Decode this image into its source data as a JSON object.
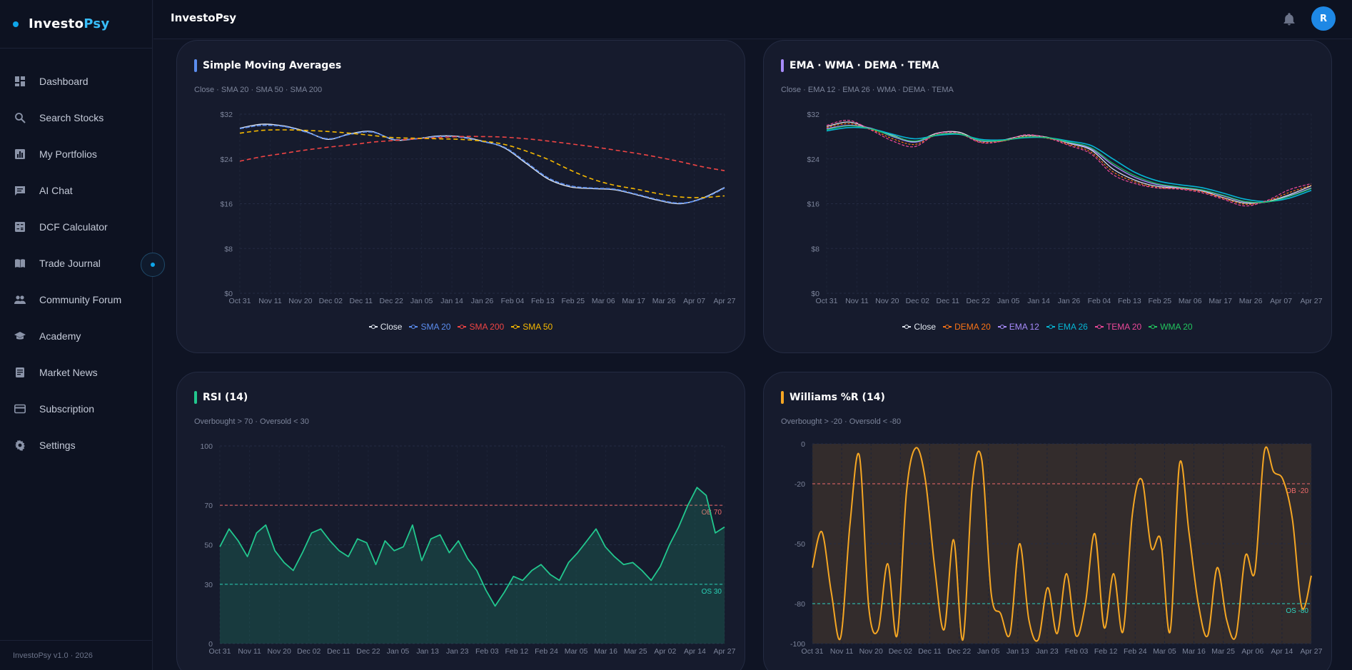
{
  "brand": {
    "part1": "Investo",
    "part2": "Psy"
  },
  "sidebar": {
    "items": [
      {
        "label": "Dashboard",
        "icon": "dashboard-icon"
      },
      {
        "label": "Search Stocks",
        "icon": "search-icon"
      },
      {
        "label": "My Portfolios",
        "icon": "bar-chart-icon"
      },
      {
        "label": "AI Chat",
        "icon": "chat-icon"
      },
      {
        "label": "DCF Calculator",
        "icon": "calculator-icon"
      },
      {
        "label": "Trade Journal",
        "icon": "book-icon"
      },
      {
        "label": "Community Forum",
        "icon": "people-icon"
      },
      {
        "label": "Academy",
        "icon": "graduation-cap-icon"
      },
      {
        "label": "Market News",
        "icon": "newspaper-icon"
      },
      {
        "label": "Subscription",
        "icon": "credit-card-icon"
      },
      {
        "label": "Settings",
        "icon": "gear-icon"
      }
    ],
    "footer": "InvestoPsy v1.0 · 2026"
  },
  "header": {
    "title": "InvestoPsy",
    "avatar_initial": "R"
  },
  "colors": {
    "accent": "#0ea5e9",
    "close": "#e2e8f0",
    "sma20": "#5b8def",
    "sma200": "#ef4444",
    "sma50": "#f5b800",
    "dema": "#f97316",
    "ema12": "#a78bfa",
    "ema26": "#06b6d4",
    "tema": "#ec4899",
    "wma": "#22c55e",
    "rsi": "#22c78e",
    "willr": "#f5a623"
  },
  "cards": {
    "sma": {
      "title": "Simple Moving Averages",
      "subtitle": "Close · SMA 20 · SMA 50 · SMA 200"
    },
    "ema": {
      "title": "EMA · WMA · DEMA · TEMA",
      "subtitle": "Close · EMA 12 · EMA 26 · WMA · DEMA · TEMA"
    },
    "rsi": {
      "title": "RSI (14)",
      "subtitle": "Overbought > 70 · Oversold < 30"
    },
    "willr": {
      "title": "Williams %R (14)",
      "subtitle": "Overbought > -20 · Oversold < -80"
    }
  },
  "chart_data": [
    {
      "type": "line",
      "title": "Simple Moving Averages",
      "subtitle": "Close · SMA 20 · SMA 50 · SMA 200",
      "x_ticks": [
        "Oct 31",
        "Nov 11",
        "Nov 20",
        "Dec 02",
        "Dec 11",
        "Dec 22",
        "Jan 05",
        "Jan 14",
        "Jan 26",
        "Feb 04",
        "Feb 13",
        "Feb 25",
        "Mar 06",
        "Mar 17",
        "Mar 26",
        "Apr 07",
        "Apr 27"
      ],
      "y_ticks": [
        "$0",
        "$8",
        "$16",
        "$24",
        "$32"
      ],
      "ylim": [
        0,
        32
      ],
      "legend_position": "bottom",
      "series": [
        {
          "name": "Close",
          "values": [
            29.5,
            30.2,
            29.9,
            28.9,
            27.5,
            28.5,
            28.9,
            27.4,
            27.6,
            28.1,
            28.0,
            27.2,
            26.0,
            23.2,
            20.4,
            19.0,
            18.7,
            18.5,
            17.6,
            16.6,
            16.0,
            17.0,
            18.9
          ]
        },
        {
          "name": "SMA 20",
          "values": [
            29.4,
            30.0,
            29.8,
            28.8,
            27.6,
            28.4,
            28.8,
            27.5,
            27.6,
            28.0,
            27.9,
            27.1,
            26.1,
            23.4,
            20.6,
            19.2,
            18.8,
            18.6,
            17.7,
            16.7,
            16.1,
            16.9,
            18.8
          ]
        },
        {
          "name": "SMA 200",
          "values": [
            23.6,
            24.4,
            25.0,
            25.6,
            26.1,
            26.5,
            27.0,
            27.3,
            27.6,
            27.8,
            28.0,
            28.0,
            27.9,
            27.6,
            27.2,
            26.7,
            26.2,
            25.6,
            25.0,
            24.3,
            23.5,
            22.6,
            21.9
          ]
        },
        {
          "name": "SMA 50",
          "values": [
            28.6,
            29.1,
            29.2,
            29.1,
            28.9,
            28.6,
            28.2,
            27.8,
            27.7,
            27.6,
            27.5,
            27.2,
            26.6,
            25.4,
            23.9,
            22.0,
            20.4,
            19.3,
            18.6,
            17.8,
            17.2,
            17.1,
            17.4
          ]
        }
      ]
    },
    {
      "type": "line",
      "title": "EMA · WMA · DEMA · TEMA",
      "subtitle": "Close · EMA 12 · EMA 26 · WMA · DEMA · TEMA",
      "x_ticks": [
        "Oct 31",
        "Nov 11",
        "Nov 20",
        "Dec 02",
        "Dec 11",
        "Dec 22",
        "Jan 05",
        "Jan 14",
        "Jan 26",
        "Feb 04",
        "Feb 13",
        "Feb 25",
        "Mar 06",
        "Mar 17",
        "Mar 26",
        "Apr 07",
        "Apr 27"
      ],
      "y_ticks": [
        "$0",
        "$8",
        "$16",
        "$24",
        "$32"
      ],
      "ylim": [
        0,
        32
      ],
      "legend_position": "bottom",
      "series": [
        {
          "name": "Close",
          "values": [
            29.8,
            30.6,
            29.4,
            28.2,
            27.1,
            28.6,
            28.8,
            27.2,
            27.4,
            28.2,
            27.9,
            26.8,
            25.6,
            22.2,
            20.2,
            19.1,
            18.8,
            18.3,
            17.1,
            16.1,
            16.4,
            17.6,
            19.2
          ]
        },
        {
          "name": "DEMA 20",
          "values": [
            29.6,
            30.3,
            29.3,
            27.6,
            26.6,
            28.3,
            28.5,
            27.0,
            27.2,
            28.0,
            27.7,
            26.6,
            25.2,
            21.7,
            19.9,
            18.9,
            18.7,
            18.2,
            17.0,
            15.9,
            16.5,
            18.0,
            19.3
          ]
        },
        {
          "name": "EMA 12",
          "values": [
            29.4,
            30.0,
            29.5,
            28.0,
            27.0,
            28.3,
            28.5,
            27.2,
            27.3,
            27.9,
            27.8,
            26.9,
            25.8,
            22.9,
            20.7,
            19.4,
            18.9,
            18.4,
            17.4,
            16.3,
            16.3,
            17.4,
            18.8
          ]
        },
        {
          "name": "EMA 26",
          "values": [
            29.0,
            29.6,
            29.4,
            28.4,
            27.6,
            28.2,
            28.4,
            27.5,
            27.4,
            27.8,
            27.8,
            27.2,
            26.4,
            24.0,
            21.6,
            20.1,
            19.4,
            18.9,
            17.9,
            16.8,
            16.4,
            17.0,
            18.4
          ]
        },
        {
          "name": "TEMA 20",
          "values": [
            30.0,
            30.9,
            29.2,
            27.2,
            26.2,
            28.5,
            28.6,
            26.9,
            27.2,
            28.3,
            27.8,
            26.4,
            24.9,
            21.2,
            19.6,
            18.8,
            18.6,
            18.0,
            16.8,
            15.6,
            16.6,
            18.5,
            19.6
          ]
        },
        {
          "name": "WMA 20",
          "values": [
            29.2,
            29.9,
            29.4,
            28.1,
            27.2,
            28.3,
            28.5,
            27.3,
            27.3,
            27.9,
            27.8,
            27.0,
            26.0,
            23.2,
            21.0,
            19.6,
            19.0,
            18.5,
            17.5,
            16.4,
            16.3,
            17.3,
            18.7
          ]
        }
      ]
    },
    {
      "type": "area",
      "title": "RSI (14)",
      "subtitle": "Overbought > 70 · Oversold < 30",
      "x_ticks": [
        "Oct 31",
        "Nov 11",
        "Nov 20",
        "Dec 02",
        "Dec 11",
        "Dec 22",
        "Jan 05",
        "Jan 13",
        "Jan 23",
        "Feb 03",
        "Feb 12",
        "Feb 24",
        "Mar 05",
        "Mar 16",
        "Mar 25",
        "Apr 02",
        "Apr 14",
        "Apr 27"
      ],
      "y_ticks": [
        "0",
        "30",
        "50",
        "70",
        "100"
      ],
      "ylim": [
        0,
        100
      ],
      "reference_lines": [
        {
          "value": 70,
          "label": "OB 70"
        },
        {
          "value": 30,
          "label": "OS 30"
        }
      ],
      "series": [
        {
          "name": "RSI (14)",
          "values": [
            49,
            58,
            52,
            44,
            56,
            60,
            47,
            41,
            37,
            46,
            56,
            58,
            52,
            47,
            44,
            53,
            51,
            40,
            52,
            47,
            49,
            60,
            42,
            53,
            55,
            46,
            52,
            43,
            37,
            27,
            19,
            26,
            34,
            32,
            37,
            40,
            35,
            32,
            41,
            46,
            52,
            58,
            49,
            44,
            40,
            41,
            37,
            32,
            39,
            50,
            59,
            70,
            79,
            75,
            56,
            59
          ]
        }
      ]
    },
    {
      "type": "line",
      "title": "Williams %R (14)",
      "subtitle": "Overbought > -20 · Oversold < -80",
      "x_ticks": [
        "Oct 31",
        "Nov 11",
        "Nov 20",
        "Dec 02",
        "Dec 11",
        "Dec 22",
        "Jan 05",
        "Jan 13",
        "Jan 23",
        "Feb 03",
        "Feb 12",
        "Feb 24",
        "Mar 05",
        "Mar 16",
        "Mar 25",
        "Apr 06",
        "Apr 14",
        "Apr 27"
      ],
      "y_ticks": [
        "0",
        "-20",
        "-50",
        "-80",
        "-100"
      ],
      "ylim": [
        -100,
        0
      ],
      "reference_lines": [
        {
          "value": -20,
          "label": "OB -20"
        },
        {
          "value": -80,
          "label": "OS -80"
        }
      ],
      "series": [
        {
          "name": "Williams %R (14)",
          "values": [
            -62,
            -44,
            -74,
            -97,
            -40,
            -6,
            -82,
            -93,
            -60,
            -96,
            -24,
            -2,
            -18,
            -62,
            -93,
            -48,
            -98,
            -20,
            -8,
            -75,
            -85,
            -95,
            -50,
            -88,
            -98,
            -72,
            -95,
            -65,
            -96,
            -80,
            -45,
            -92,
            -65,
            -94,
            -35,
            -18,
            -52,
            -48,
            -94,
            -10,
            -44,
            -80,
            -96,
            -62,
            -88,
            -96,
            -56,
            -64,
            -4,
            -14,
            -18,
            -38,
            -82,
            -66
          ]
        }
      ]
    }
  ],
  "chart_legends": {
    "sma": [
      {
        "label": "Close",
        "color": "#e2e8f0"
      },
      {
        "label": "SMA 20",
        "color": "#5b8def"
      },
      {
        "label": "SMA 200",
        "color": "#ef4444"
      },
      {
        "label": "SMA 50",
        "color": "#f5b800"
      }
    ],
    "ema": [
      {
        "label": "Close",
        "color": "#e2e8f0"
      },
      {
        "label": "DEMA 20",
        "color": "#f97316"
      },
      {
        "label": "EMA 12",
        "color": "#a78bfa"
      },
      {
        "label": "EMA 26",
        "color": "#06b6d4"
      },
      {
        "label": "TEMA 20",
        "color": "#ec4899"
      },
      {
        "label": "WMA 20",
        "color": "#22c55e"
      }
    ]
  }
}
